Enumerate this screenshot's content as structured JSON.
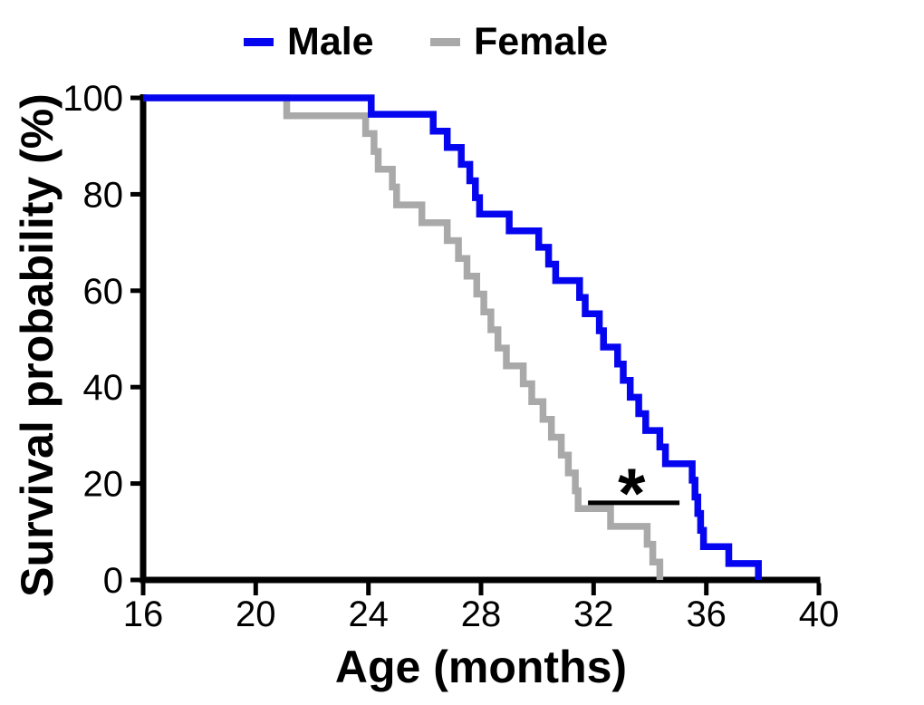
{
  "chart_data": {
    "type": "line",
    "subtype": "kaplan-meier-step",
    "title": "",
    "xlabel": "Age (months)",
    "ylabel": "Survival probability (%)",
    "xlim": [
      16,
      40
    ],
    "ylim": [
      0,
      100
    ],
    "xticks": [
      16,
      20,
      24,
      28,
      32,
      36,
      40
    ],
    "yticks": [
      0,
      20,
      40,
      60,
      80,
      100
    ],
    "grid": false,
    "legend_position": "top-center",
    "axis_color": "#000000",
    "series": [
      {
        "name": "Male",
        "color": "#0505f0",
        "n_at_start": 29,
        "start": [
          16,
          100
        ],
        "steps": [
          [
            24.1,
            96.6
          ],
          [
            26.3,
            93.1
          ],
          [
            26.8,
            89.7
          ],
          [
            27.3,
            86.2
          ],
          [
            27.6,
            82.8
          ],
          [
            27.8,
            79.3
          ],
          [
            27.95,
            75.9
          ],
          [
            29.0,
            72.4
          ],
          [
            30.05,
            69.0
          ],
          [
            30.4,
            65.5
          ],
          [
            30.65,
            62.1
          ],
          [
            31.5,
            58.6
          ],
          [
            31.7,
            55.2
          ],
          [
            32.2,
            51.7
          ],
          [
            32.35,
            48.3
          ],
          [
            32.85,
            44.8
          ],
          [
            33.05,
            41.4
          ],
          [
            33.3,
            37.9
          ],
          [
            33.6,
            34.5
          ],
          [
            33.85,
            31.0
          ],
          [
            34.35,
            27.6
          ],
          [
            34.55,
            24.1
          ],
          [
            35.5,
            20.7
          ],
          [
            35.6,
            17.2
          ],
          [
            35.7,
            13.8
          ],
          [
            35.8,
            10.3
          ],
          [
            35.9,
            6.9
          ],
          [
            36.8,
            3.4
          ],
          [
            37.85,
            0
          ]
        ]
      },
      {
        "name": "Female",
        "color": "#a9a9a9",
        "n_at_start": 27,
        "start": [
          16,
          100
        ],
        "steps": [
          [
            21.1,
            96.3
          ],
          [
            23.9,
            92.6
          ],
          [
            24.2,
            88.9
          ],
          [
            24.35,
            85.2
          ],
          [
            24.85,
            81.5
          ],
          [
            25.0,
            77.8
          ],
          [
            25.9,
            74.1
          ],
          [
            26.8,
            70.4
          ],
          [
            27.2,
            66.7
          ],
          [
            27.5,
            63.0
          ],
          [
            27.85,
            59.3
          ],
          [
            28.1,
            55.6
          ],
          [
            28.35,
            51.9
          ],
          [
            28.6,
            48.1
          ],
          [
            28.9,
            44.4
          ],
          [
            29.5,
            40.7
          ],
          [
            29.8,
            37.0
          ],
          [
            30.2,
            33.3
          ],
          [
            30.5,
            29.6
          ],
          [
            30.85,
            25.9
          ],
          [
            31.1,
            22.2
          ],
          [
            31.35,
            18.5
          ],
          [
            31.45,
            14.8
          ],
          [
            32.6,
            11.1
          ],
          [
            33.9,
            7.4
          ],
          [
            34.1,
            3.7
          ],
          [
            34.35,
            0
          ]
        ]
      }
    ],
    "annotation": {
      "symbol": "*",
      "line_x_range_months": [
        31.8,
        35.05
      ],
      "line_y_percent": 16.0,
      "symbol_x_month": 33.35,
      "color": "#000000"
    }
  },
  "legend": {
    "items": [
      {
        "label": "Male",
        "color": "#0505f0"
      },
      {
        "label": "Female",
        "color": "#a9a9a9"
      }
    ]
  }
}
